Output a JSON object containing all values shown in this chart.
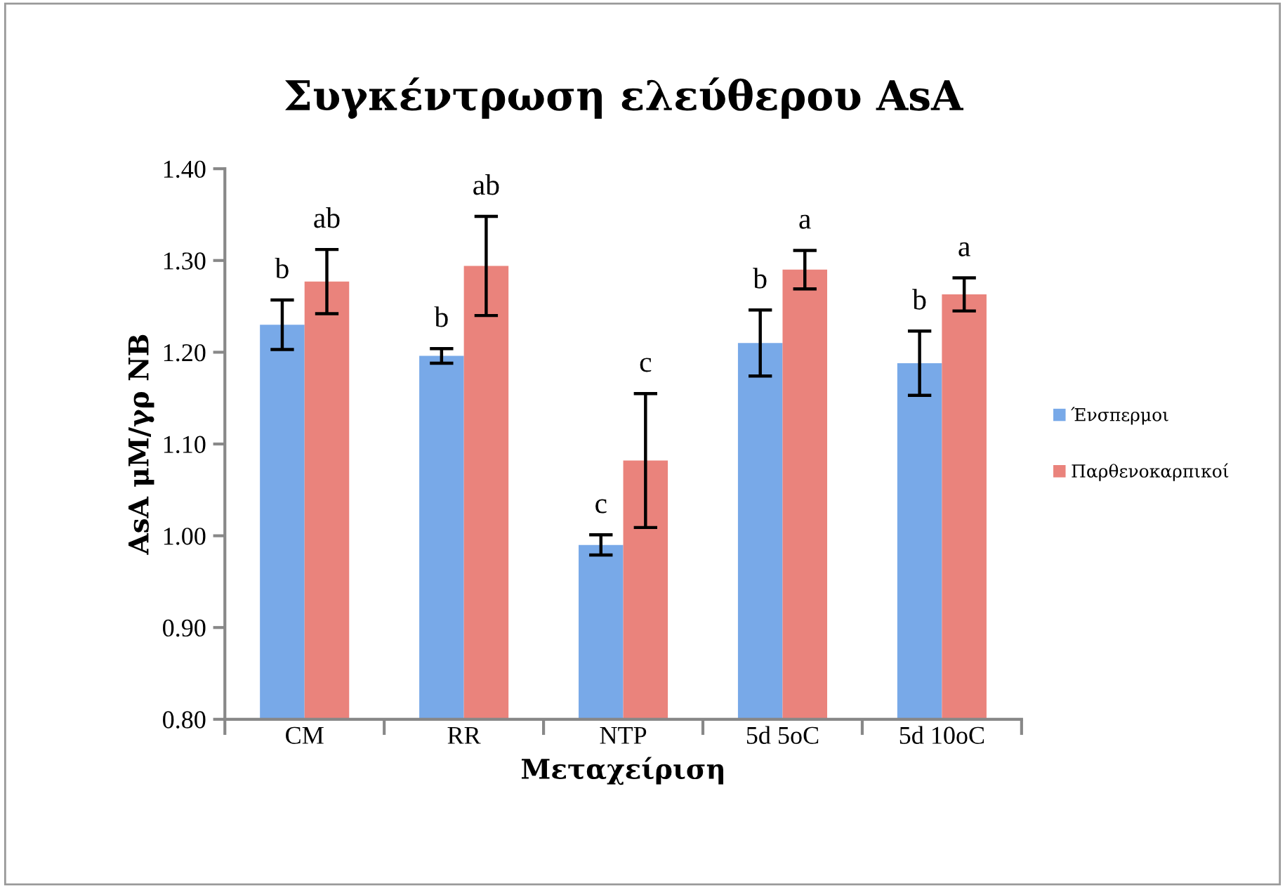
{
  "chart_data": {
    "type": "bar",
    "title": "Συγκέντρωση ελεύθερου AsA",
    "xlabel": "Μεταχείριση",
    "ylabel": "AsA μM/γρ NB",
    "categories": [
      "CM",
      "RR",
      "NTP",
      "5d 5oC",
      "5d 10oC"
    ],
    "series": [
      {
        "name": "Ένσπερμοι",
        "color": "#78a9e8",
        "values": [
          1.23,
          1.196,
          0.99,
          1.21,
          1.188
        ],
        "errors": [
          0.027,
          0.008,
          0.011,
          0.036,
          0.035
        ],
        "value_labels": [
          "b",
          "b",
          "c",
          "b",
          "b"
        ]
      },
      {
        "name": "Παρθενοκαρπικοί",
        "color": "#ea837c",
        "values": [
          1.277,
          1.294,
          1.082,
          1.29,
          1.263
        ],
        "errors": [
          0.035,
          0.054,
          0.073,
          0.021,
          0.018
        ],
        "value_labels": [
          "ab",
          "ab",
          "c",
          "a",
          "a"
        ]
      }
    ],
    "ylim": [
      0.8,
      1.4
    ],
    "yticks": [
      {
        "value": 0.8,
        "label": "0.80"
      },
      {
        "value": 0.9,
        "label": "0.90"
      },
      {
        "value": 1.0,
        "label": "1.00"
      },
      {
        "value": 1.1,
        "label": "1.10"
      },
      {
        "value": 1.2,
        "label": "1.20"
      },
      {
        "value": 1.3,
        "label": "1.30"
      },
      {
        "value": 1.4,
        "label": "1.40"
      }
    ],
    "grid": false,
    "legend": "right"
  }
}
